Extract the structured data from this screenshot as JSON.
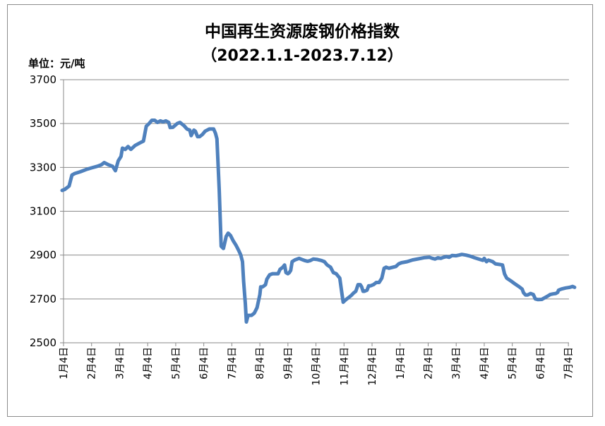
{
  "chart_data": {
    "type": "line",
    "title": "中国再生资源废钢价格指数",
    "subtitle": "（2022.1.1-2023.7.12）",
    "unit_label": "单位：元/吨",
    "ylim": [
      2500,
      3700
    ],
    "yticks": [
      2500,
      2700,
      2900,
      3100,
      3300,
      3500,
      3700
    ],
    "ytick_labels": [
      "2500",
      "2700",
      "2900",
      "3100",
      "3300",
      "3500",
      "3700"
    ],
    "xticks": [
      {
        "label": "1月4日",
        "x": 0
      },
      {
        "label": "2月4日",
        "x": 1
      },
      {
        "label": "3月4日",
        "x": 2
      },
      {
        "label": "4月4日",
        "x": 3
      },
      {
        "label": "5月4日",
        "x": 4
      },
      {
        "label": "6月4日",
        "x": 5
      },
      {
        "label": "7月4日",
        "x": 6
      },
      {
        "label": "8月4日",
        "x": 7
      },
      {
        "label": "9月4日",
        "x": 8
      },
      {
        "label": "10月4日",
        "x": 9
      },
      {
        "label": "11月4日",
        "x": 10
      },
      {
        "label": "12月4日",
        "x": 11
      },
      {
        "label": "1月4日",
        "x": 12
      },
      {
        "label": "2月4日",
        "x": 13
      },
      {
        "label": "3月4日",
        "x": 14
      },
      {
        "label": "4月4日",
        "x": 15
      },
      {
        "label": "5月4日",
        "x": 16
      },
      {
        "label": "6月4日",
        "x": 17
      },
      {
        "label": "7月4日",
        "x": 18
      }
    ],
    "xlim": [
      -0.05,
      18.22
    ],
    "grid": true,
    "color": "#4f81bd",
    "series": [
      {
        "points": [
          [
            -0.05,
            3195
          ],
          [
            0.05,
            3200
          ],
          [
            0.2,
            3215
          ],
          [
            0.3,
            3265
          ],
          [
            0.4,
            3272
          ],
          [
            0.6,
            3280
          ],
          [
            0.8,
            3290
          ],
          [
            1.0,
            3298
          ],
          [
            1.2,
            3305
          ],
          [
            1.35,
            3312
          ],
          [
            1.45,
            3322
          ],
          [
            1.6,
            3312
          ],
          [
            1.75,
            3305
          ],
          [
            1.85,
            3285
          ],
          [
            1.95,
            3330
          ],
          [
            2.05,
            3350
          ],
          [
            2.1,
            3388
          ],
          [
            2.2,
            3382
          ],
          [
            2.3,
            3395
          ],
          [
            2.4,
            3382
          ],
          [
            2.55,
            3400
          ],
          [
            2.7,
            3410
          ],
          [
            2.85,
            3420
          ],
          [
            2.95,
            3488
          ],
          [
            3.05,
            3500
          ],
          [
            3.15,
            3515
          ],
          [
            3.25,
            3515
          ],
          [
            3.35,
            3505
          ],
          [
            3.45,
            3512
          ],
          [
            3.55,
            3508
          ],
          [
            3.65,
            3512
          ],
          [
            3.75,
            3505
          ],
          [
            3.8,
            3482
          ],
          [
            3.9,
            3483
          ],
          [
            4.05,
            3500
          ],
          [
            4.15,
            3505
          ],
          [
            4.3,
            3490
          ],
          [
            4.4,
            3475
          ],
          [
            4.5,
            3470
          ],
          [
            4.55,
            3445
          ],
          [
            4.65,
            3470
          ],
          [
            4.7,
            3465
          ],
          [
            4.78,
            3440
          ],
          [
            4.85,
            3440
          ],
          [
            4.95,
            3450
          ],
          [
            5.05,
            3465
          ],
          [
            5.2,
            3475
          ],
          [
            5.35,
            3475
          ],
          [
            5.42,
            3455
          ],
          [
            5.47,
            3430
          ],
          [
            5.55,
            3200
          ],
          [
            5.62,
            2940
          ],
          [
            5.7,
            2930
          ],
          [
            5.8,
            2985
          ],
          [
            5.87,
            3000
          ],
          [
            5.95,
            2990
          ],
          [
            6.05,
            2965
          ],
          [
            6.15,
            2945
          ],
          [
            6.25,
            2920
          ],
          [
            6.32,
            2900
          ],
          [
            6.38,
            2870
          ],
          [
            6.42,
            2780
          ],
          [
            6.48,
            2680
          ],
          [
            6.52,
            2595
          ],
          [
            6.58,
            2625
          ],
          [
            6.7,
            2625
          ],
          [
            6.8,
            2635
          ],
          [
            6.9,
            2660
          ],
          [
            7.0,
            2720
          ],
          [
            7.03,
            2755
          ],
          [
            7.1,
            2755
          ],
          [
            7.2,
            2765
          ],
          [
            7.25,
            2790
          ],
          [
            7.35,
            2810
          ],
          [
            7.45,
            2815
          ],
          [
            7.65,
            2815
          ],
          [
            7.72,
            2835
          ],
          [
            7.82,
            2845
          ],
          [
            7.88,
            2855
          ],
          [
            7.93,
            2820
          ],
          [
            8.0,
            2815
          ],
          [
            8.05,
            2820
          ],
          [
            8.1,
            2830
          ],
          [
            8.15,
            2870
          ],
          [
            8.25,
            2878
          ],
          [
            8.4,
            2885
          ],
          [
            8.5,
            2880
          ],
          [
            8.6,
            2875
          ],
          [
            8.7,
            2872
          ],
          [
            8.8,
            2875
          ],
          [
            8.9,
            2882
          ],
          [
            9.05,
            2880
          ],
          [
            9.2,
            2875
          ],
          [
            9.3,
            2870
          ],
          [
            9.4,
            2855
          ],
          [
            9.52,
            2845
          ],
          [
            9.62,
            2820
          ],
          [
            9.72,
            2815
          ],
          [
            9.85,
            2795
          ],
          [
            9.92,
            2730
          ],
          [
            9.97,
            2685
          ],
          [
            10.05,
            2695
          ],
          [
            10.15,
            2705
          ],
          [
            10.25,
            2715
          ],
          [
            10.35,
            2728
          ],
          [
            10.42,
            2735
          ],
          [
            10.5,
            2765
          ],
          [
            10.58,
            2765
          ],
          [
            10.63,
            2755
          ],
          [
            10.68,
            2735
          ],
          [
            10.72,
            2735
          ],
          [
            10.82,
            2740
          ],
          [
            10.88,
            2760
          ],
          [
            10.95,
            2760
          ],
          [
            11.05,
            2765
          ],
          [
            11.15,
            2775
          ],
          [
            11.25,
            2775
          ],
          [
            11.35,
            2795
          ],
          [
            11.43,
            2840
          ],
          [
            11.5,
            2845
          ],
          [
            11.6,
            2840
          ],
          [
            11.75,
            2845
          ],
          [
            11.85,
            2848
          ],
          [
            11.95,
            2860
          ],
          [
            12.05,
            2865
          ],
          [
            12.25,
            2870
          ],
          [
            12.45,
            2878
          ],
          [
            12.65,
            2883
          ],
          [
            12.85,
            2888
          ],
          [
            13.05,
            2890
          ],
          [
            13.15,
            2885
          ],
          [
            13.25,
            2882
          ],
          [
            13.35,
            2888
          ],
          [
            13.45,
            2885
          ],
          [
            13.55,
            2890
          ],
          [
            13.65,
            2893
          ],
          [
            13.75,
            2890
          ],
          [
            13.85,
            2898
          ],
          [
            14.0,
            2897
          ],
          [
            14.1,
            2900
          ],
          [
            14.2,
            2903
          ],
          [
            14.35,
            2900
          ],
          [
            14.5,
            2895
          ],
          [
            14.65,
            2888
          ],
          [
            14.8,
            2882
          ],
          [
            14.95,
            2876
          ],
          [
            15.0,
            2885
          ],
          [
            15.08,
            2870
          ],
          [
            15.15,
            2877
          ],
          [
            15.3,
            2870
          ],
          [
            15.4,
            2860
          ],
          [
            15.55,
            2857
          ],
          [
            15.65,
            2855
          ],
          [
            15.72,
            2815
          ],
          [
            15.8,
            2795
          ],
          [
            15.95,
            2782
          ],
          [
            16.1,
            2768
          ],
          [
            16.25,
            2755
          ],
          [
            16.35,
            2745
          ],
          [
            16.4,
            2728
          ],
          [
            16.47,
            2718
          ],
          [
            16.55,
            2718
          ],
          [
            16.65,
            2725
          ],
          [
            16.75,
            2720
          ],
          [
            16.82,
            2700
          ],
          [
            16.92,
            2697
          ],
          [
            17.05,
            2698
          ],
          [
            17.15,
            2705
          ],
          [
            17.25,
            2712
          ],
          [
            17.35,
            2720
          ],
          [
            17.45,
            2723
          ],
          [
            17.55,
            2725
          ],
          [
            17.62,
            2730
          ],
          [
            17.65,
            2740
          ],
          [
            17.75,
            2745
          ],
          [
            17.9,
            2750
          ],
          [
            18.05,
            2753
          ],
          [
            18.15,
            2757
          ],
          [
            18.22,
            2753
          ]
        ]
      }
    ]
  }
}
